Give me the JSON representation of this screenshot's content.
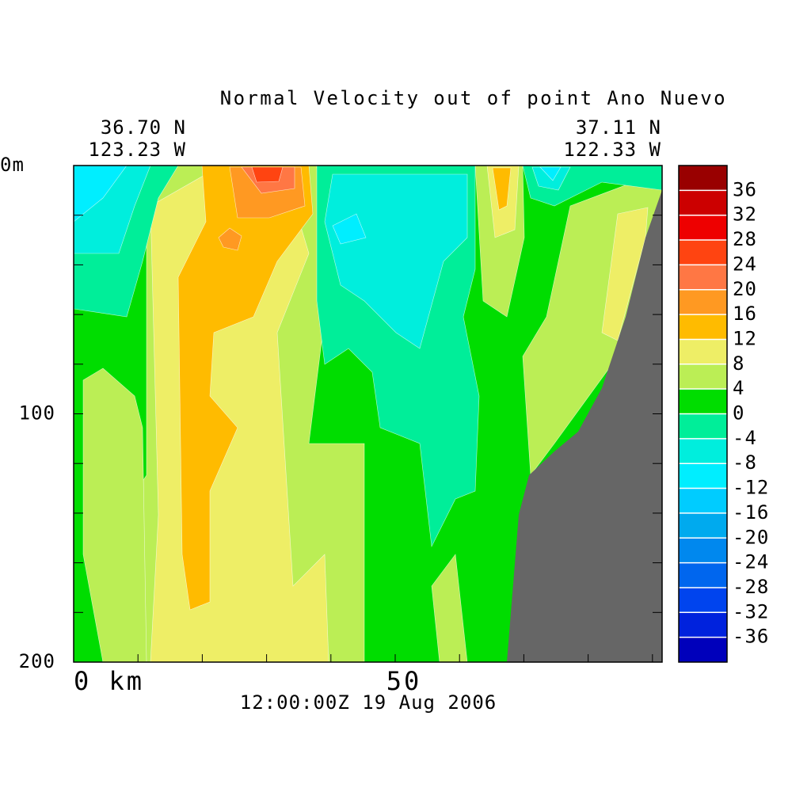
{
  "chart_data": {
    "type": "contour",
    "title": "Normal Velocity out of point Ano Nuevo",
    "start_lat": "36.70 N",
    "start_lon": "123.23 W",
    "end_lat": "37.11 N",
    "end_lon": "122.33 W",
    "time": "12:00:00Z  19 Aug 2006",
    "xlim": [
      0,
      91.5
    ],
    "xticks": [
      {
        "value": 0,
        "label": "0 km"
      },
      50
    ],
    "xminor": [
      10,
      20,
      30,
      40,
      60,
      70,
      80,
      90
    ],
    "ylim": [
      0,
      200
    ],
    "yticks": [
      {
        "value": 0,
        "label": "0m"
      },
      100,
      200
    ],
    "yminor": [
      20,
      40,
      60,
      80,
      120,
      140,
      160,
      180
    ],
    "zlim": [
      -40,
      40
    ],
    "zticks": [
      -36,
      -32,
      -28,
      -24,
      -20,
      -16,
      -12,
      -8,
      -4,
      0,
      4,
      8,
      12,
      16,
      20,
      24,
      28,
      32,
      36
    ],
    "colors": [
      "#0000bb",
      "#0022dd",
      "#0044ee",
      "#0066ee",
      "#0088ee",
      "#00aaee",
      "#00ccff",
      "#00eeff",
      "#00eedd",
      "#00ee99",
      "#00dd00",
      "#bbee55",
      "#eeee66",
      "#ffbb00",
      "#ff9922",
      "#ff7744",
      "#ff4411",
      "#ee0000",
      "#cc0000",
      "#990000"
    ]
  }
}
